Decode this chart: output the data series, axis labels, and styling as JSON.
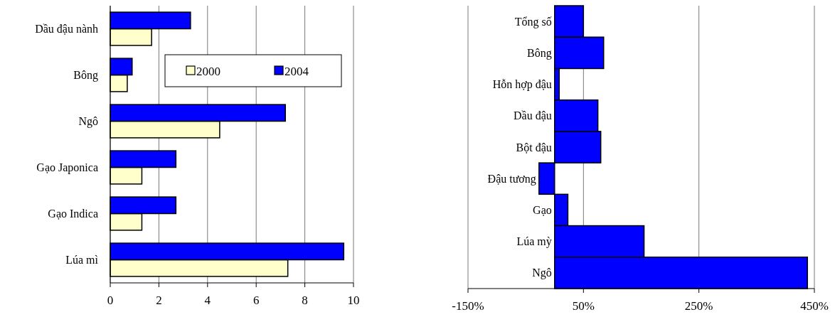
{
  "chart_data": [
    {
      "type": "bar",
      "orientation": "horizontal",
      "categories": [
        "Dầu đậu nành",
        "Bông",
        "Ngô",
        "Gạo Japonica",
        "Gạo Indica",
        "Lúa mì"
      ],
      "series": [
        {
          "name": "2000",
          "color": "#ffffcc",
          "values": [
            1.7,
            0.7,
            4.5,
            1.3,
            1.3,
            7.3
          ]
        },
        {
          "name": "2004",
          "color": "#0000ff",
          "values": [
            3.3,
            0.9,
            7.2,
            2.7,
            2.7,
            9.6
          ]
        }
      ],
      "xlim": [
        0,
        10
      ],
      "xticks": [
        0,
        2,
        4,
        6,
        8,
        10
      ],
      "grid": "x",
      "legend": "right"
    },
    {
      "type": "bar",
      "orientation": "horizontal",
      "categories": [
        "Tổng số",
        "Bông",
        "Hỗn hợp đậu",
        "Dầu đậu",
        "Bột đậu",
        "Đậu tương",
        "Gạo",
        "Lúa mỳ",
        "Ngô"
      ],
      "series": [
        {
          "color": "#0000ff",
          "values": [
            50,
            85,
            8,
            75,
            80,
            -27,
            23,
            155,
            438
          ]
        }
      ],
      "xlim": [
        -150,
        450
      ],
      "xticks": [
        {
          "value": -150,
          "label": "-150%"
        },
        {
          "value": 50,
          "label": "50%"
        },
        {
          "value": 250,
          "label": "250%"
        },
        {
          "value": 450,
          "label": "450%"
        }
      ],
      "grid": "x"
    }
  ]
}
